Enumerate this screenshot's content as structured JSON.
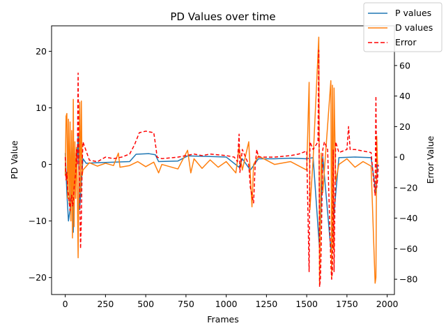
{
  "chart_data": {
    "type": "line",
    "title": "PD Values over time",
    "xlabel": "Frames",
    "ylabel": "PD Value",
    "y2label": "Error Value",
    "xlim": [
      -85,
      2045
    ],
    "ylim": [
      -23,
      24.5
    ],
    "y2lim": [
      -90,
      86
    ],
    "xticks": [
      0,
      250,
      500,
      750,
      1000,
      1250,
      1500,
      1750,
      2000
    ],
    "yticks": [
      -20,
      -10,
      0,
      10,
      20
    ],
    "y2ticks": [
      -80,
      -60,
      -40,
      -20,
      0,
      20,
      40,
      60
    ],
    "grid": false,
    "legend_position": "top-right",
    "series": [
      {
        "name": "P values",
        "axis": "left",
        "color": "#1f77b4",
        "style": "solid",
        "points": [
          [
            0,
            2
          ],
          [
            10,
            -5
          ],
          [
            20,
            -10
          ],
          [
            30,
            -8
          ],
          [
            40,
            3
          ],
          [
            50,
            -12
          ],
          [
            60,
            2
          ],
          [
            70,
            -2
          ],
          [
            80,
            5
          ],
          [
            90,
            -8
          ],
          [
            100,
            -3
          ],
          [
            110,
            1
          ],
          [
            130,
            0.2
          ],
          [
            200,
            0.3
          ],
          [
            300,
            0.4
          ],
          [
            400,
            0.5
          ],
          [
            440,
            1.8
          ],
          [
            520,
            1.9
          ],
          [
            560,
            1.7
          ],
          [
            580,
            0.5
          ],
          [
            700,
            0.6
          ],
          [
            760,
            1.5
          ],
          [
            900,
            1.4
          ],
          [
            1000,
            1.3
          ],
          [
            1080,
            -0.5
          ],
          [
            1100,
            1.0
          ],
          [
            1150,
            -1.0
          ],
          [
            1200,
            1.0
          ],
          [
            1300,
            1.0
          ],
          [
            1400,
            1.1
          ],
          [
            1500,
            1.0
          ],
          [
            1540,
            1.2
          ],
          [
            1580,
            -15
          ],
          [
            1600,
            1.3
          ],
          [
            1650,
            -15
          ],
          [
            1700,
            1.2
          ],
          [
            1800,
            1.3
          ],
          [
            1900,
            1.2
          ],
          [
            1930,
            -5
          ],
          [
            1940,
            0.5
          ]
        ]
      },
      {
        "name": "D values",
        "axis": "left",
        "color": "#ff7f0e",
        "style": "solid",
        "points": [
          [
            0,
            -2
          ],
          [
            5,
            8.5
          ],
          [
            10,
            9
          ],
          [
            15,
            -6
          ],
          [
            20,
            8
          ],
          [
            25,
            -7
          ],
          [
            30,
            7.5
          ],
          [
            35,
            -10
          ],
          [
            40,
            6
          ],
          [
            45,
            -13
          ],
          [
            50,
            11.5
          ],
          [
            55,
            -11
          ],
          [
            60,
            4
          ],
          [
            65,
            -6
          ],
          [
            70,
            3
          ],
          [
            75,
            -4
          ],
          [
            80,
            -16.5
          ],
          [
            85,
            -2
          ],
          [
            90,
            11
          ],
          [
            95,
            -5
          ],
          [
            100,
            11.2
          ],
          [
            105,
            -2
          ],
          [
            110,
            -1
          ],
          [
            150,
            0.3
          ],
          [
            200,
            -0.3
          ],
          [
            250,
            0.2
          ],
          [
            300,
            -0.2
          ],
          [
            330,
            2
          ],
          [
            340,
            -0.5
          ],
          [
            400,
            -0.2
          ],
          [
            450,
            0.5
          ],
          [
            500,
            -0.4
          ],
          [
            550,
            0.4
          ],
          [
            580,
            -1.5
          ],
          [
            600,
            0
          ],
          [
            700,
            -0.8
          ],
          [
            760,
            2.5
          ],
          [
            780,
            -1.5
          ],
          [
            800,
            1
          ],
          [
            850,
            -0.7
          ],
          [
            900,
            0.8
          ],
          [
            950,
            -0.5
          ],
          [
            1000,
            0.5
          ],
          [
            1060,
            -1.5
          ],
          [
            1080,
            3
          ],
          [
            1100,
            -1
          ],
          [
            1140,
            4
          ],
          [
            1150,
            -2
          ],
          [
            1160,
            -7.5
          ],
          [
            1170,
            0
          ],
          [
            1200,
            1.5
          ],
          [
            1300,
            0
          ],
          [
            1400,
            0.5
          ],
          [
            1500,
            -1
          ],
          [
            1515,
            14.5
          ],
          [
            1520,
            -8
          ],
          [
            1540,
            1
          ],
          [
            1575,
            22.5
          ],
          [
            1580,
            -21
          ],
          [
            1590,
            2
          ],
          [
            1600,
            -5
          ],
          [
            1620,
            3
          ],
          [
            1650,
            14.8
          ],
          [
            1655,
            -20
          ],
          [
            1660,
            14
          ],
          [
            1665,
            -15
          ],
          [
            1670,
            13.5
          ],
          [
            1680,
            -3
          ],
          [
            1700,
            0
          ],
          [
            1750,
            1
          ],
          [
            1800,
            -0.5
          ],
          [
            1850,
            0.5
          ],
          [
            1900,
            -0.3
          ],
          [
            1925,
            -21
          ],
          [
            1930,
            -20
          ],
          [
            1935,
            5
          ],
          [
            1940,
            0
          ]
        ]
      },
      {
        "name": "Error",
        "axis": "right",
        "color": "#ff0000",
        "style": "dashed",
        "points": [
          [
            0,
            0
          ],
          [
            5,
            -15
          ],
          [
            10,
            -10
          ],
          [
            15,
            -22
          ],
          [
            20,
            -25
          ],
          [
            25,
            -30
          ],
          [
            30,
            -35
          ],
          [
            35,
            -28
          ],
          [
            40,
            -25
          ],
          [
            45,
            -32
          ],
          [
            50,
            -30
          ],
          [
            55,
            -20
          ],
          [
            60,
            -15
          ],
          [
            65,
            -10
          ],
          [
            70,
            5
          ],
          [
            75,
            -5
          ],
          [
            80,
            55
          ],
          [
            85,
            -5
          ],
          [
            90,
            -20
          ],
          [
            95,
            -60
          ],
          [
            100,
            -40
          ],
          [
            105,
            -5
          ],
          [
            110,
            10
          ],
          [
            150,
            -2
          ],
          [
            200,
            -3
          ],
          [
            250,
            0
          ],
          [
            300,
            -1
          ],
          [
            350,
            0
          ],
          [
            400,
            2
          ],
          [
            430,
            8
          ],
          [
            460,
            16
          ],
          [
            500,
            17
          ],
          [
            550,
            16
          ],
          [
            565,
            5
          ],
          [
            570,
            0
          ],
          [
            600,
            -1
          ],
          [
            700,
            0
          ],
          [
            800,
            2
          ],
          [
            850,
            1
          ],
          [
            900,
            2
          ],
          [
            1000,
            1
          ],
          [
            1050,
            0
          ],
          [
            1070,
            -3
          ],
          [
            1080,
            15
          ],
          [
            1085,
            -10
          ],
          [
            1100,
            5
          ],
          [
            1140,
            -5
          ],
          [
            1150,
            -20
          ],
          [
            1160,
            -25
          ],
          [
            1170,
            -30
          ],
          [
            1180,
            -5
          ],
          [
            1190,
            5
          ],
          [
            1200,
            0
          ],
          [
            1300,
            0
          ],
          [
            1400,
            1
          ],
          [
            1450,
            2
          ],
          [
            1500,
            4
          ],
          [
            1515,
            -75
          ],
          [
            1520,
            10
          ],
          [
            1540,
            5
          ],
          [
            1570,
            10
          ],
          [
            1575,
            70
          ],
          [
            1580,
            -85
          ],
          [
            1585,
            -80
          ],
          [
            1590,
            -60
          ],
          [
            1600,
            5
          ],
          [
            1610,
            10
          ],
          [
            1630,
            5
          ],
          [
            1650,
            -70
          ],
          [
            1655,
            -80
          ],
          [
            1660,
            -75
          ],
          [
            1665,
            5
          ],
          [
            1670,
            -75
          ],
          [
            1680,
            10
          ],
          [
            1700,
            3
          ],
          [
            1750,
            5
          ],
          [
            1760,
            20
          ],
          [
            1770,
            5
          ],
          [
            1800,
            5
          ],
          [
            1850,
            4
          ],
          [
            1900,
            3
          ],
          [
            1920,
            -20
          ],
          [
            1925,
            -25
          ],
          [
            1930,
            40
          ],
          [
            1935,
            -20
          ],
          [
            1940,
            -15
          ],
          [
            1945,
            -5
          ]
        ]
      }
    ]
  }
}
